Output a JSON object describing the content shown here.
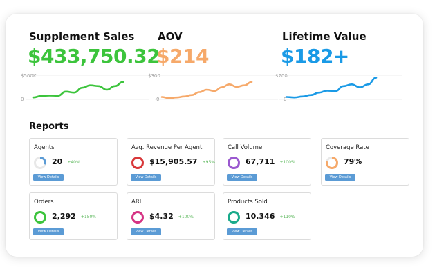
{
  "metrics": [
    {
      "title": "Supplement Sales",
      "value": "$433,750.32",
      "color": "#3cc43c",
      "axis_top": "$500K",
      "axis_bottom": "0",
      "trend": [
        0.08,
        0.14,
        0.16,
        0.15,
        0.32,
        0.28,
        0.48,
        0.58,
        0.55,
        0.4,
        0.55,
        0.72
      ]
    },
    {
      "title": "AOV",
      "value": "$214",
      "color": "#f6a96a",
      "axis_top": "$300",
      "axis_bottom": "0",
      "trend": [
        0.1,
        0.05,
        0.08,
        0.12,
        0.18,
        0.3,
        0.4,
        0.35,
        0.5,
        0.62,
        0.52,
        0.58,
        0.72
      ]
    },
    {
      "title": "Lifetime Value",
      "value": "$182+",
      "color": "#1a9ae6",
      "axis_top": "$200",
      "axis_bottom": "0",
      "trend": [
        0.1,
        0.08,
        0.12,
        0.18,
        0.28,
        0.36,
        0.34,
        0.55,
        0.62,
        0.5,
        0.62,
        0.9
      ]
    }
  ],
  "reports": {
    "title": "Reports",
    "button_label": "View Details",
    "cards": [
      {
        "label": "Agents",
        "value": "20",
        "change": "+40%",
        "ring_color": "#5b9bd5",
        "fill": 0.3
      },
      {
        "label": "Avg. Revenue Per Agent",
        "value": "$15,905.57",
        "change": "+95%",
        "ring_color": "#d9383a",
        "fill": 1
      },
      {
        "label": "Call Volume",
        "value": "67,711",
        "change": "+100%",
        "ring_color": "#9b59d0",
        "fill": 1
      },
      {
        "label": "Coverage Rate",
        "value": "79%",
        "change": "",
        "ring_color": "#f6a96a",
        "fill": 0.79
      },
      {
        "label": "Orders",
        "value": "2,292",
        "change": "+150%",
        "ring_color": "#3cc43c",
        "fill": 1
      },
      {
        "label": "ARL",
        "value": "$4.32",
        "change": "+100%",
        "ring_color": "#d63384",
        "fill": 1
      },
      {
        "label": "Products Sold",
        "value": "10.346",
        "change": "+110%",
        "ring_color": "#1aab8b",
        "fill": 1
      }
    ]
  }
}
